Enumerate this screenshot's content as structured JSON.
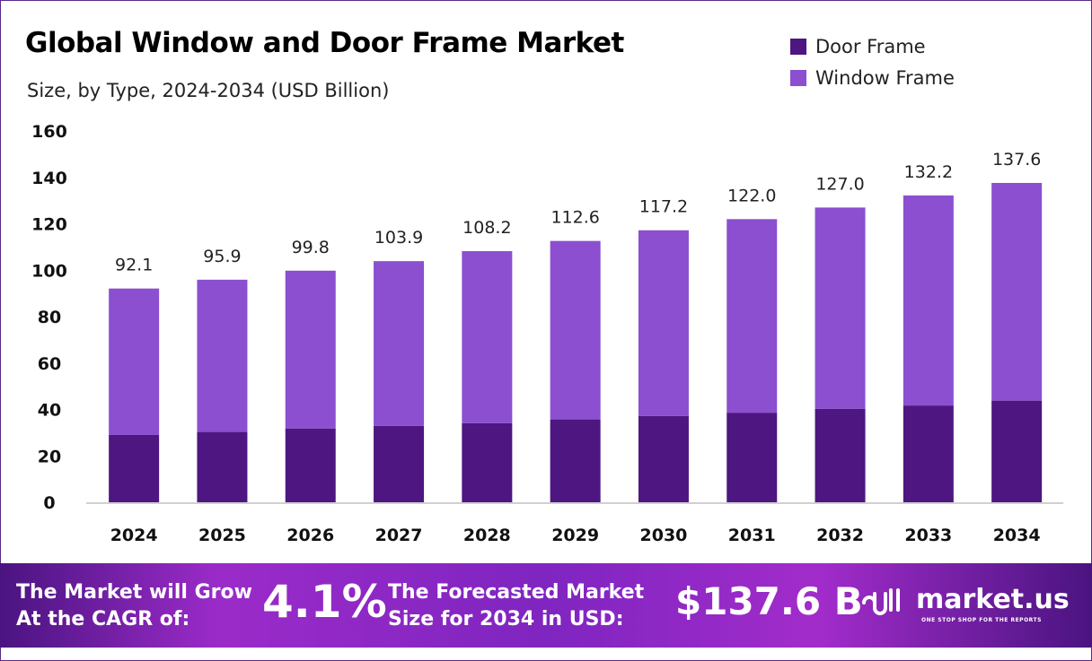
{
  "colors": {
    "door": "#4d1680",
    "window": "#8b4fd0",
    "footer": "#8e28c4"
  },
  "chart_data": {
    "type": "bar",
    "stacked": true,
    "title": "Global Window and Door Frame Market",
    "subtitle": "Size, by Type, 2024-2034 (USD Billion)",
    "xlabel": "",
    "ylabel": "",
    "ylim": [
      0,
      160
    ],
    "yticks": [
      0,
      20,
      40,
      60,
      80,
      100,
      120,
      140,
      160
    ],
    "grid": false,
    "legend_position": "top-right",
    "categories": [
      "2024",
      "2025",
      "2026",
      "2027",
      "2028",
      "2029",
      "2030",
      "2031",
      "2032",
      "2033",
      "2034"
    ],
    "series": [
      {
        "name": "Door Frame",
        "values": [
          29.0,
          30.3,
          31.8,
          32.9,
          34.1,
          35.7,
          37.2,
          38.6,
          40.3,
          41.7,
          43.8
        ]
      },
      {
        "name": "Window Frame",
        "values": [
          63.1,
          65.6,
          68.0,
          71.0,
          74.1,
          76.9,
          80.0,
          83.4,
          86.7,
          90.5,
          93.8
        ]
      }
    ],
    "totals": [
      "92.1",
      "95.9",
      "99.8",
      "103.9",
      "108.2",
      "112.6",
      "117.2",
      "122.0",
      "127.0",
      "132.2",
      "137.6"
    ]
  },
  "footer": {
    "cagr_label_1": "The Market will Grow",
    "cagr_label_2": "At the CAGR of:",
    "cagr_value": "4.1%",
    "forecast_label_1": "The Forecasted Market",
    "forecast_label_2": "Size for 2034 in USD:",
    "forecast_value": "$137.6 B",
    "brand": "market.us",
    "brand_tagline": "ONE STOP SHOP FOR THE REPORTS"
  }
}
